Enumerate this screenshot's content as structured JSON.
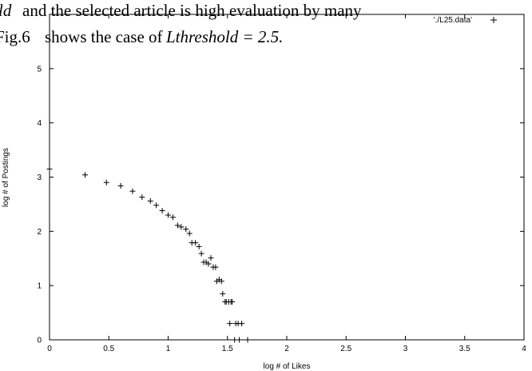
{
  "overlay": {
    "line1_prefix": "ld",
    "line1_text": " and the selected article is high evaluation by many",
    "line2_prefix": "Fig.6",
    "line2_text": " shows the case of ",
    "line2_math": "Lthreshold = 2.5."
  },
  "chart_data": {
    "type": "scatter",
    "xlabel": "log # of Likes",
    "ylabel": "log # of Postings",
    "xlim": [
      0,
      4
    ],
    "ylim": [
      0,
      6
    ],
    "xticks": [
      "0",
      "0.5",
      "1",
      "1.5",
      "2",
      "2.5",
      "3",
      "3.5",
      "4"
    ],
    "yticks": [
      "0",
      "1",
      "2",
      "3",
      "4",
      "5"
    ],
    "marker": "+",
    "grid": false,
    "legend_position": "top-right",
    "series": [
      {
        "name": "'./L25.data'",
        "x": [
          0.0,
          0.3,
          0.48,
          0.6,
          0.7,
          0.78,
          0.85,
          0.9,
          0.95,
          1.0,
          1.04,
          1.08,
          1.11,
          1.15,
          1.18,
          1.2,
          1.23,
          1.26,
          1.28,
          1.3,
          1.32,
          1.34,
          1.36,
          1.38,
          1.4,
          1.41,
          1.43,
          1.45,
          1.46,
          1.48,
          1.49,
          1.51,
          1.52,
          1.53,
          1.54,
          1.56,
          1.57,
          1.59,
          1.6,
          1.62,
          1.67
        ],
        "y": [
          3.15,
          3.04,
          2.9,
          2.84,
          2.74,
          2.63,
          2.56,
          2.48,
          2.38,
          2.3,
          2.26,
          2.11,
          2.08,
          2.04,
          1.96,
          1.79,
          1.79,
          1.72,
          1.59,
          1.43,
          1.43,
          1.4,
          1.51,
          1.34,
          1.34,
          1.08,
          1.11,
          1.08,
          0.85,
          0.7,
          0.7,
          0.7,
          0.3,
          0.7,
          0.7,
          0,
          0.3,
          0.3,
          0,
          0.3,
          0
        ]
      }
    ]
  }
}
